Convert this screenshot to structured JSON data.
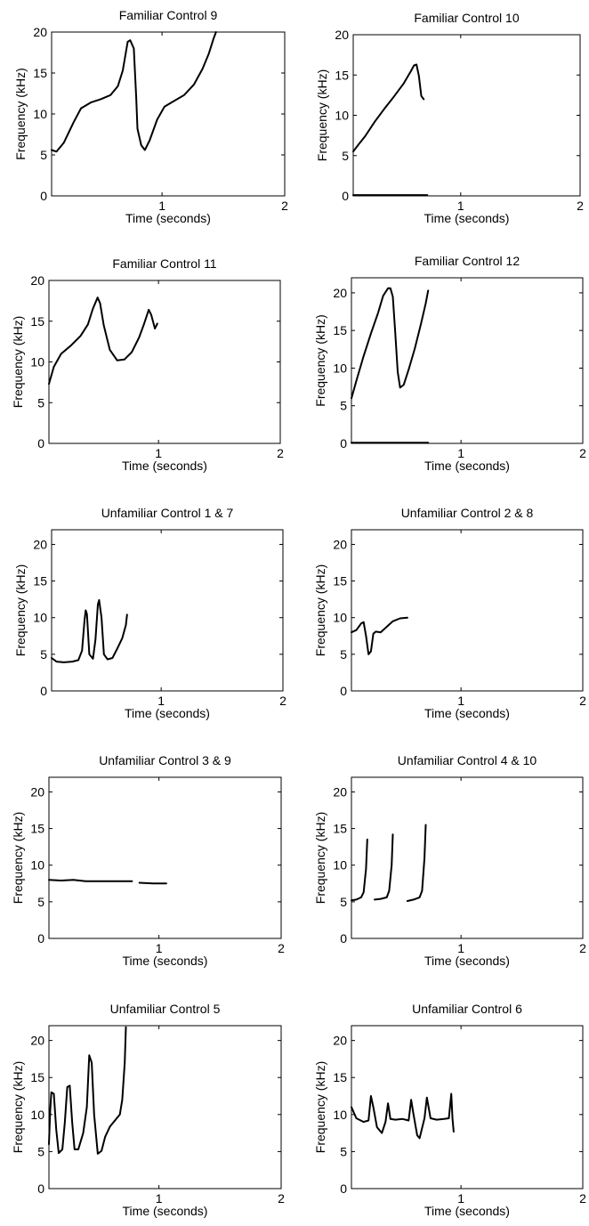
{
  "chart_data": [
    {
      "type": "line",
      "title": "Familiar Control 9",
      "xlabel": "Time (seconds)",
      "ylabel": "Frequency (kHz)",
      "xlim": [
        0.1,
        2
      ],
      "ylim": [
        0,
        20
      ],
      "xticks": [
        1,
        2
      ],
      "yticks": [
        0,
        5,
        10,
        15,
        20
      ],
      "series": [
        {
          "x": [
            0.1,
            0.14,
            0.2,
            0.28,
            0.34,
            0.42,
            0.5,
            0.58,
            0.64,
            0.68,
            0.72,
            0.74,
            0.77,
            0.79,
            0.8,
            0.83,
            0.86,
            0.9,
            0.96,
            1.02,
            1.1,
            1.18,
            1.26,
            1.33,
            1.38,
            1.42,
            1.44
          ],
          "y": [
            5.6,
            5.4,
            6.5,
            9,
            10.7,
            11.4,
            11.8,
            12.3,
            13.4,
            15.3,
            18.8,
            19,
            18,
            12,
            8.2,
            6.2,
            5.6,
            6.8,
            9.3,
            10.9,
            11.6,
            12.3,
            13.6,
            15.5,
            17.3,
            19.2,
            20
          ]
        }
      ]
    },
    {
      "type": "line",
      "title": "Familiar Control 10",
      "xlabel": "Time (seconds)",
      "ylabel": "Frequency (kHz)",
      "xlim": [
        0.1,
        2
      ],
      "ylim": [
        0,
        20
      ],
      "xticks": [
        1,
        2
      ],
      "yticks": [
        0,
        5,
        10,
        15,
        20
      ],
      "series": [
        {
          "x": [
            0.1,
            0.14,
            0.2,
            0.28,
            0.36,
            0.44,
            0.52,
            0.58,
            0.61,
            0.63,
            0.65,
            0.67,
            0.69
          ],
          "y": [
            5.5,
            6.3,
            7.4,
            9.2,
            10.8,
            12.3,
            13.9,
            15.4,
            16.2,
            16.3,
            14.9,
            12.4,
            12
          ]
        },
        {
          "x": [
            0.1,
            0.72
          ],
          "y": [
            0.1,
            0.1
          ]
        }
      ]
    },
    {
      "type": "line",
      "title": "Familiar Control 11",
      "xlabel": "Time (seconds)",
      "ylabel": "Frequency (kHz)",
      "xlim": [
        0.1,
        2
      ],
      "ylim": [
        0,
        20
      ],
      "xticks": [
        1,
        2
      ],
      "yticks": [
        0,
        5,
        10,
        15,
        20
      ],
      "series": [
        {
          "x": [
            0.1,
            0.14,
            0.2,
            0.28,
            0.36,
            0.42,
            0.46,
            0.5,
            0.52,
            0.55,
            0.6,
            0.66,
            0.72,
            0.78,
            0.84,
            0.88,
            0.92,
            0.94,
            0.97,
            0.99
          ],
          "y": [
            7.3,
            9.4,
            11,
            12,
            13.2,
            14.6,
            16.5,
            17.9,
            17.2,
            14.5,
            11.5,
            10.2,
            10.3,
            11.2,
            13,
            14.6,
            16.4,
            15.8,
            14.1,
            14.7
          ]
        }
      ]
    },
    {
      "type": "line",
      "title": "Familiar Control 12",
      "xlabel": "Time (seconds)",
      "ylabel": "Frequency (kHz)",
      "xlim": [
        0.1,
        2
      ],
      "ylim": [
        0,
        22
      ],
      "xticks": [
        1,
        2
      ],
      "yticks": [
        0,
        5,
        10,
        15,
        20
      ],
      "series": [
        {
          "x": [
            0.1,
            0.14,
            0.2,
            0.26,
            0.32,
            0.36,
            0.4,
            0.42,
            0.44,
            0.46,
            0.48,
            0.5,
            0.53,
            0.57,
            0.62,
            0.67,
            0.71,
            0.73
          ],
          "y": [
            6,
            8.3,
            11.6,
            14.6,
            17.4,
            19.6,
            20.6,
            20.6,
            19.5,
            14.6,
            9.5,
            7.4,
            7.8,
            9.8,
            12.6,
            15.8,
            18.6,
            20.3
          ]
        },
        {
          "x": [
            0.1,
            0.73
          ],
          "y": [
            0.1,
            0.1
          ]
        }
      ]
    },
    {
      "type": "line",
      "title": "Unfamiliar Control 1 & 7",
      "xlabel": "Time (seconds)",
      "ylabel": "Frequency (kHz)",
      "xlim": [
        0.1,
        2
      ],
      "ylim": [
        0,
        22
      ],
      "xticks": [
        1,
        2
      ],
      "yticks": [
        0,
        5,
        10,
        15,
        20
      ],
      "series": [
        {
          "x": [
            0.1,
            0.14,
            0.2,
            0.27,
            0.32,
            0.35,
            0.37,
            0.38,
            0.39,
            0.41,
            0.44,
            0.46,
            0.48,
            0.49,
            0.51,
            0.53,
            0.56,
            0.6,
            0.64,
            0.68,
            0.71,
            0.72
          ],
          "y": [
            4.5,
            4,
            3.9,
            4,
            4.2,
            5.5,
            9.5,
            11,
            10.5,
            5,
            4.4,
            7,
            11.8,
            12.4,
            10,
            5,
            4.3,
            4.5,
            5.8,
            7.2,
            9,
            10.4
          ]
        }
      ]
    },
    {
      "type": "line",
      "title": "Unfamiliar Control 2 & 8",
      "xlabel": "Time (seconds)",
      "ylabel": "Frequency (kHz)",
      "xlim": [
        0.1,
        2
      ],
      "ylim": [
        0,
        22
      ],
      "xticks": [
        1,
        2
      ],
      "yticks": [
        0,
        5,
        10,
        15,
        20
      ],
      "series": [
        {
          "x": [
            0.1,
            0.14,
            0.18,
            0.2,
            0.22,
            0.24,
            0.26,
            0.28,
            0.3,
            0.34,
            0.38,
            0.44,
            0.5,
            0.56
          ],
          "y": [
            8,
            8.3,
            9.2,
            9.4,
            7.5,
            5,
            5.4,
            7.8,
            8.1,
            8,
            8.6,
            9.5,
            9.9,
            10
          ]
        }
      ]
    },
    {
      "type": "line",
      "title": "Unfamiliar Control 3 & 9",
      "xlabel": "Time (seconds)",
      "ylabel": "Frequency (kHz)",
      "xlim": [
        0.1,
        2
      ],
      "ylim": [
        0,
        22
      ],
      "xticks": [
        1,
        2
      ],
      "yticks": [
        0,
        5,
        10,
        15,
        20
      ],
      "series": [
        {
          "x": [
            0.1,
            0.2,
            0.3,
            0.4,
            0.5,
            0.6,
            0.7,
            0.78
          ],
          "y": [
            8,
            7.9,
            8,
            7.8,
            7.8,
            7.8,
            7.8,
            7.8
          ]
        },
        {
          "x": [
            0.84,
            0.95,
            1.06
          ],
          "y": [
            7.6,
            7.5,
            7.5
          ]
        }
      ]
    },
    {
      "type": "line",
      "title": "Unfamiliar Control 4 & 10",
      "xlabel": "Time (seconds)",
      "ylabel": "Frequency (kHz)",
      "xlim": [
        0.1,
        2
      ],
      "ylim": [
        0,
        22
      ],
      "xticks": [
        1,
        2
      ],
      "yticks": [
        0,
        5,
        10,
        15,
        20
      ],
      "series": [
        {
          "x": [
            0.1,
            0.14,
            0.18,
            0.2,
            0.22,
            0.23
          ],
          "y": [
            5.2,
            5.3,
            5.6,
            6.3,
            9.5,
            13.5
          ]
        },
        {
          "x": [
            0.29,
            0.34,
            0.39,
            0.41,
            0.43,
            0.44
          ],
          "y": [
            5.3,
            5.4,
            5.6,
            6.5,
            10,
            14.2
          ]
        },
        {
          "x": [
            0.56,
            0.61,
            0.66,
            0.68,
            0.7,
            0.71
          ],
          "y": [
            5.1,
            5.3,
            5.6,
            6.5,
            11,
            15.5
          ]
        }
      ]
    },
    {
      "type": "line",
      "title": "Unfamiliar Control 5",
      "xlabel": "Time (seconds)",
      "ylabel": "Frequency (kHz)",
      "xlim": [
        0.1,
        2
      ],
      "ylim": [
        0,
        22
      ],
      "xticks": [
        1,
        2
      ],
      "yticks": [
        0,
        5,
        10,
        15,
        20
      ],
      "series": [
        {
          "x": [
            0.1,
            0.11,
            0.12,
            0.14,
            0.16,
            0.18,
            0.21,
            0.23,
            0.25,
            0.27,
            0.29,
            0.31,
            0.34,
            0.38,
            0.41,
            0.43,
            0.45,
            0.47,
            0.5,
            0.53,
            0.56,
            0.6,
            0.64,
            0.68,
            0.7,
            0.72,
            0.73
          ],
          "y": [
            6,
            10.5,
            13,
            12.8,
            8,
            4.8,
            5.3,
            9,
            13.7,
            13.9,
            9,
            5.3,
            5.3,
            7.5,
            11,
            18,
            17,
            10,
            4.7,
            5.1,
            7,
            8.4,
            9.2,
            10,
            12,
            17,
            21.8
          ]
        }
      ]
    },
    {
      "type": "line",
      "title": "Unfamiliar Control 6",
      "xlabel": "Time (seconds)",
      "ylabel": "Frequency (kHz)",
      "xlim": [
        0.1,
        2
      ],
      "ylim": [
        0,
        22
      ],
      "xticks": [
        1,
        2
      ],
      "yticks": [
        0,
        5,
        10,
        15,
        20
      ],
      "series": [
        {
          "x": [
            0.1,
            0.14,
            0.2,
            0.24,
            0.26,
            0.28,
            0.31,
            0.35,
            0.38,
            0.4,
            0.42,
            0.46,
            0.52,
            0.57,
            0.59,
            0.61,
            0.64,
            0.66,
            0.7,
            0.72,
            0.75,
            0.8,
            0.86,
            0.9,
            0.92,
            0.93,
            0.94
          ],
          "y": [
            11,
            9.5,
            9,
            9.2,
            12.5,
            11,
            8.3,
            7.5,
            9,
            11.5,
            9.4,
            9.3,
            9.4,
            9.2,
            12,
            10,
            7.2,
            6.8,
            9.5,
            12.3,
            9.5,
            9.3,
            9.4,
            9.5,
            12.8,
            9.4,
            7.7
          ]
        }
      ]
    }
  ]
}
